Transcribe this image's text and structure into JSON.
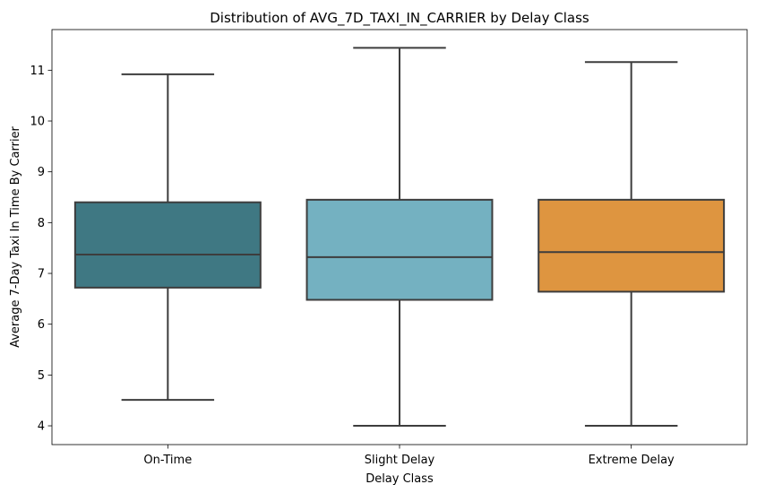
{
  "chart_data": {
    "type": "box",
    "title": "Distribution of AVG_7D_TAXI_IN_CARRIER by Delay Class",
    "xlabel": "Delay Class",
    "ylabel": "Average 7-Day Taxi In Time By Carrier",
    "categories": [
      "On-Time",
      "Slight Delay",
      "Extreme Delay"
    ],
    "yticks": [
      4,
      5,
      6,
      7,
      8,
      9,
      10,
      11
    ],
    "ylim": [
      3.63,
      11.8
    ],
    "grid": false,
    "legend": "none",
    "boxes": [
      {
        "category": "On-Time",
        "whisker_low": 4.51,
        "q1": 6.72,
        "median": 7.37,
        "q3": 8.4,
        "whisker_high": 10.92,
        "color": "#3f7883"
      },
      {
        "category": "Slight Delay",
        "whisker_low": 4.0,
        "q1": 6.48,
        "median": 7.32,
        "q3": 8.45,
        "whisker_high": 11.44,
        "color": "#74b1c1"
      },
      {
        "category": "Extreme Delay",
        "whisker_low": 4.0,
        "q1": 6.64,
        "median": 7.42,
        "q3": 8.45,
        "whisker_high": 11.16,
        "color": "#de9540"
      }
    ],
    "line_color": "#3d3d3d"
  }
}
